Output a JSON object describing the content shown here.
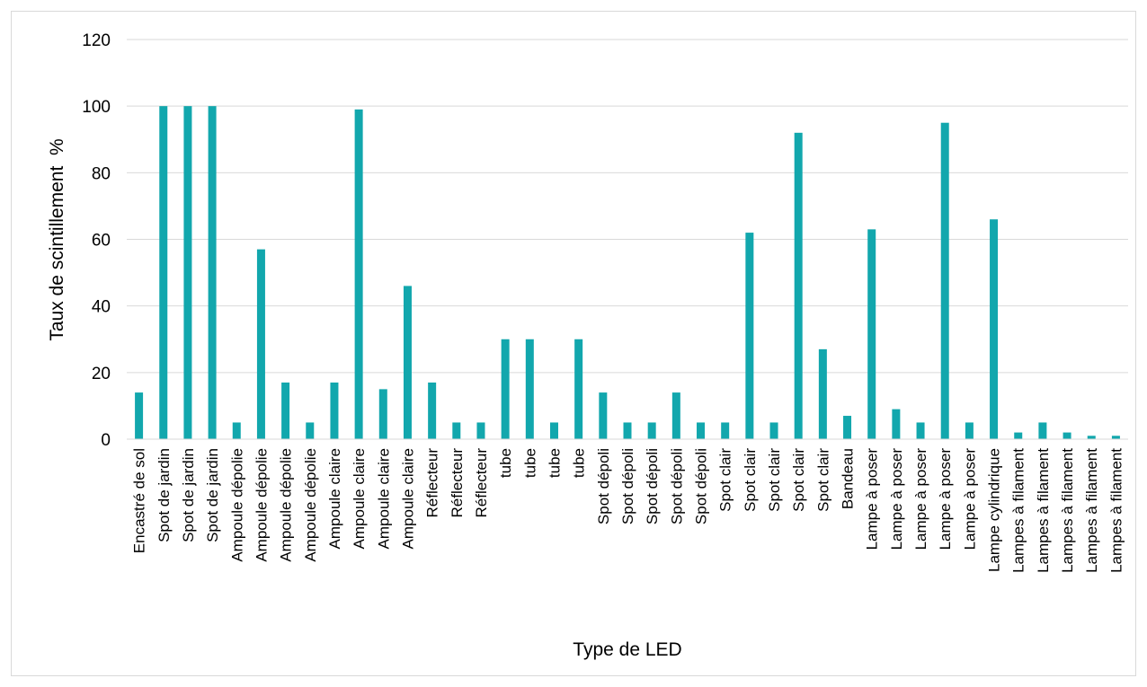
{
  "chart_data": {
    "type": "bar",
    "title": "",
    "xlabel": "Type de LED",
    "ylabel": "Taux de scintillement  %",
    "ylim": [
      0,
      120
    ],
    "yticks": [
      0,
      20,
      40,
      60,
      80,
      100,
      120
    ],
    "grid": true,
    "legend": "none",
    "bar_color": "#12A7AD",
    "categories": [
      "Encastré de sol",
      "Spot de jardin",
      "Spot de jardin",
      "Spot de jardin",
      "Ampoule dépolie",
      "Ampoule dépolie",
      "Ampoule dépolie",
      "Ampoule dépolie",
      "Ampoule claire",
      "Ampoule claire",
      "Ampoule claire",
      "Ampoule claire",
      "Réflecteur",
      "Réflecteur",
      "Réflecteur",
      "tube",
      "tube",
      "tube",
      "tube",
      "Spot dépoli",
      "Spot dépoli",
      "Spot dépoli",
      "Spot dépoli",
      "Spot dépoli",
      "Spot clair",
      "Spot clair",
      "Spot clair",
      "Spot clair",
      "Spot clair",
      "Bandeau",
      "Lampe à poser",
      "Lampe à poser",
      "Lampe à poser",
      "Lampe à poser",
      "Lampe à poser",
      "Lampe cylindrique",
      "Lampes à filament",
      "Lampes à filament",
      "Lampes à filament",
      "Lampes à filament",
      "Lampes à filament"
    ],
    "values": [
      14,
      100,
      100,
      100,
      5,
      57,
      17,
      5,
      17,
      99,
      15,
      46,
      17,
      5,
      5,
      30,
      30,
      5,
      30,
      14,
      5,
      5,
      14,
      5,
      5,
      62,
      5,
      92,
      27,
      7,
      63,
      9,
      5,
      95,
      5,
      66,
      2,
      5,
      2,
      1,
      1
    ]
  }
}
